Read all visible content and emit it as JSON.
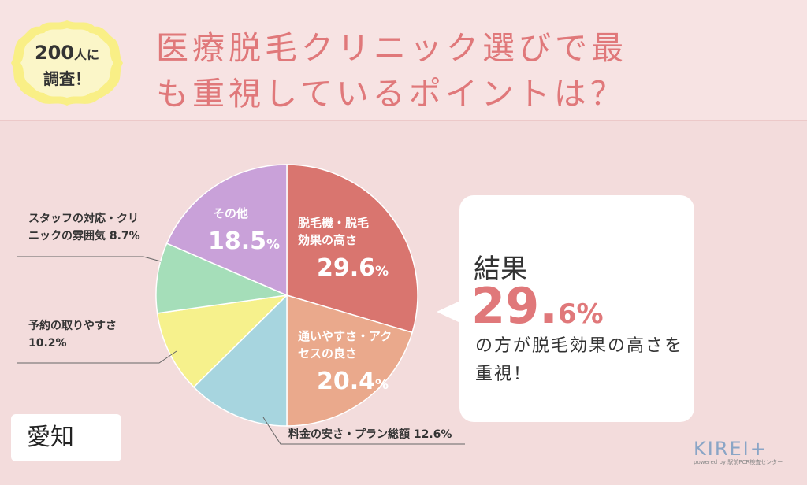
{
  "badge": {
    "line1_num": "200",
    "line1_suffix": "人に",
    "line2": "調査！"
  },
  "title": {
    "line1": "医療脱毛クリニック選びで最",
    "line2": "も重視しているポイントは？"
  },
  "chart_data": {
    "type": "pie",
    "categories": [
      "脱毛機・脱毛効果の高さ",
      "通いやすさ・アクセスの良さ",
      "料金の安さ・プラン総額",
      "予約の取りやすさ",
      "スタッフの対応・クリニックの雰囲気",
      "その他"
    ],
    "values": [
      29.6,
      20.4,
      12.6,
      10.2,
      8.7,
      18.5
    ],
    "colors": [
      "#d9756f",
      "#eaa98c",
      "#a7d5df",
      "#f6f18c",
      "#a5deb9",
      "#c9a1d9"
    ],
    "inside_labels": [
      {
        "lines": [
          "脱毛機・脱毛",
          "効果の高さ"
        ],
        "value": "29.6",
        "unit": "%"
      },
      {
        "lines": [
          "通いやすさ・アク",
          "セスの良さ"
        ],
        "value": "20.4",
        "unit": "%"
      },
      null,
      null,
      null,
      {
        "lines": [
          "その他"
        ],
        "value": "18.5",
        "unit": "%"
      }
    ],
    "outside_labels": [
      null,
      null,
      {
        "lines": [
          "料金の安さ・プラン総額 12.6%"
        ]
      },
      {
        "lines": [
          "予約の取りやすさ",
          "10.2%"
        ]
      },
      {
        "lines": [
          "スタッフの対応・クリ",
          "ニックの雰囲気 8.7%"
        ]
      },
      null
    ]
  },
  "result": {
    "label": "結果",
    "value_big": "29.",
    "value_small": "6%",
    "desc": "の方が脱毛効果の高さを重視！"
  },
  "prefecture": "愛知",
  "logo": {
    "name": "KIREI+",
    "sub": "powered by 駅前PCR検査センター"
  }
}
